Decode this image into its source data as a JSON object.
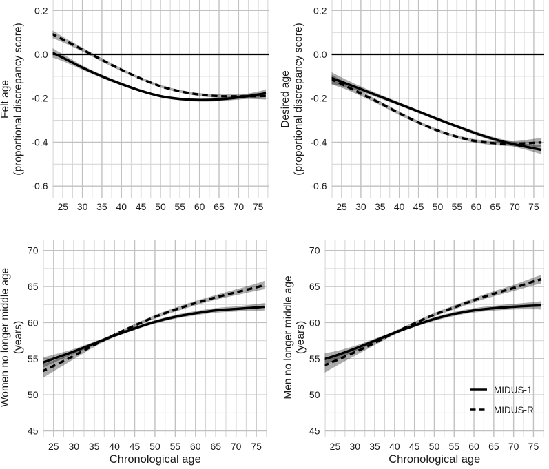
{
  "figure": {
    "description": "Four-panel line figure: subjective age discrepancy and end of middle age across chronological age, MIDUS-1 vs MIDUS-R",
    "xlabel": "Chronological age",
    "legend": {
      "position": "bottom-right-panel",
      "items": [
        {
          "label": "MIDUS-1",
          "style": "solid"
        },
        {
          "label": "MIDUS-R",
          "style": "dashed"
        }
      ]
    },
    "colors": {
      "background": "#ffffff",
      "line": "#000000",
      "ci_band": "rgba(0,0,0,0.32)",
      "grid_minor": "#d7d7d7",
      "grid_major": "#c1c1c1",
      "text": "#1a1a1a",
      "zero_line": "#000000"
    }
  },
  "chart_data": [
    {
      "type": "line",
      "panel": "top-left",
      "ylabel_lines": [
        "Felt age",
        "(proportional discrepancy score)"
      ],
      "xlabel": "",
      "xlim": [
        22.4,
        77.7
      ],
      "ylim": [
        -0.656,
        0.248
      ],
      "x_ticks": [
        25,
        30,
        35,
        40,
        45,
        50,
        55,
        60,
        65,
        70,
        75
      ],
      "x_tick_labels": [
        "25",
        "30",
        "35",
        "40",
        "45",
        "50",
        "55",
        "60",
        "65",
        "70",
        "75"
      ],
      "y_ticks": [
        0.2,
        0.0,
        -0.2,
        -0.4,
        -0.6
      ],
      "y_tick_labels": [
        "0.2",
        "0.0",
        "-0.2",
        "-0.4",
        "-0.6"
      ],
      "x_minor_step": 2.5,
      "x_major_step": 5,
      "y_minor_step": 0.1,
      "y_major_step": 0.2,
      "grid": true,
      "zero_line": true,
      "x": [
        22,
        25,
        30,
        35,
        40,
        45,
        50,
        55,
        60,
        65,
        70,
        75,
        77
      ],
      "series": [
        {
          "name": "MIDUS-1",
          "style": "solid",
          "values": [
            0.01,
            -0.015,
            -0.06,
            -0.1,
            -0.135,
            -0.166,
            -0.19,
            -0.203,
            -0.208,
            -0.205,
            -0.196,
            -0.183,
            -0.176
          ],
          "ci_half_width": [
            0.022,
            0.016,
            0.01,
            0.008,
            0.007,
            0.006,
            0.006,
            0.006,
            0.007,
            0.008,
            0.01,
            0.014,
            0.017
          ]
        },
        {
          "name": "MIDUS-R",
          "style": "dashed",
          "values": [
            0.095,
            0.068,
            0.022,
            -0.025,
            -0.07,
            -0.11,
            -0.145,
            -0.168,
            -0.183,
            -0.19,
            -0.191,
            -0.19,
            -0.189
          ],
          "ci_half_width": [
            0.018,
            0.013,
            0.009,
            0.008,
            0.007,
            0.006,
            0.006,
            0.006,
            0.007,
            0.008,
            0.01,
            0.014,
            0.017
          ]
        }
      ]
    },
    {
      "type": "line",
      "panel": "top-right",
      "ylabel_lines": [
        "Desired age",
        "(proportional discrepancy score)"
      ],
      "xlabel": "",
      "xlim": [
        22.4,
        77.7
      ],
      "ylim": [
        -0.656,
        0.248
      ],
      "x_ticks": [
        25,
        30,
        35,
        40,
        45,
        50,
        55,
        60,
        65,
        70,
        75
      ],
      "x_tick_labels": [
        "25",
        "30",
        "35",
        "40",
        "45",
        "50",
        "55",
        "60",
        "65",
        "70",
        "75"
      ],
      "y_ticks": [
        0.2,
        0.0,
        -0.2,
        -0.4,
        -0.6
      ],
      "y_tick_labels": [
        "0.2",
        "0.0",
        "-0.2",
        "-0.4",
        "-0.6"
      ],
      "x_minor_step": 2.5,
      "x_major_step": 5,
      "y_minor_step": 0.1,
      "y_major_step": 0.2,
      "grid": true,
      "zero_line": true,
      "x": [
        22,
        25,
        30,
        35,
        40,
        45,
        50,
        55,
        60,
        65,
        70,
        75,
        77
      ],
      "series": [
        {
          "name": "MIDUS-1",
          "style": "solid",
          "values": [
            -0.105,
            -0.125,
            -0.158,
            -0.192,
            -0.226,
            -0.26,
            -0.295,
            -0.328,
            -0.36,
            -0.388,
            -0.41,
            -0.428,
            -0.435
          ],
          "ci_half_width": [
            0.028,
            0.02,
            0.012,
            0.009,
            0.008,
            0.007,
            0.007,
            0.007,
            0.008,
            0.009,
            0.011,
            0.016,
            0.02
          ]
        },
        {
          "name": "MIDUS-R",
          "style": "dashed",
          "values": [
            -0.112,
            -0.135,
            -0.178,
            -0.222,
            -0.268,
            -0.31,
            -0.347,
            -0.375,
            -0.395,
            -0.405,
            -0.407,
            -0.403,
            -0.401
          ],
          "ci_half_width": [
            0.024,
            0.017,
            0.011,
            0.009,
            0.008,
            0.007,
            0.007,
            0.007,
            0.008,
            0.009,
            0.012,
            0.018,
            0.022
          ]
        }
      ]
    },
    {
      "type": "line",
      "panel": "bottom-left",
      "ylabel_lines": [
        "Women no longer middle age",
        "(years)"
      ],
      "xlabel": "Chronological age",
      "xlim": [
        22.4,
        77.7
      ],
      "ylim": [
        44.1,
        71.5
      ],
      "x_ticks": [
        25,
        30,
        35,
        40,
        45,
        50,
        55,
        60,
        65,
        70,
        75
      ],
      "x_tick_labels": [
        "25",
        "30",
        "35",
        "40",
        "45",
        "50",
        "55",
        "60",
        "65",
        "70",
        "75"
      ],
      "y_ticks": [
        70,
        65,
        60,
        55,
        50,
        45
      ],
      "y_tick_labels": [
        "70",
        "65",
        "60",
        "55",
        "50",
        "45"
      ],
      "x_minor_step": 2.5,
      "x_major_step": 5,
      "y_minor_step": 2.5,
      "y_major_step": 5,
      "grid": true,
      "zero_line": false,
      "x": [
        22,
        25,
        30,
        35,
        40,
        45,
        50,
        55,
        60,
        65,
        70,
        75,
        77
      ],
      "series": [
        {
          "name": "MIDUS-1",
          "style": "solid",
          "values": [
            54.4,
            55.0,
            56.0,
            57.1,
            58.2,
            59.2,
            60.1,
            60.8,
            61.3,
            61.7,
            61.9,
            62.1,
            62.2
          ],
          "ci_half_width": [
            0.75,
            0.55,
            0.35,
            0.25,
            0.22,
            0.22,
            0.24,
            0.26,
            0.29,
            0.32,
            0.36,
            0.45,
            0.52
          ]
        },
        {
          "name": "MIDUS-R",
          "style": "dashed",
          "values": [
            53.2,
            54.0,
            55.4,
            56.9,
            58.3,
            59.6,
            60.8,
            61.8,
            62.7,
            63.5,
            64.2,
            64.9,
            65.2
          ],
          "ci_half_width": [
            1.0,
            0.75,
            0.45,
            0.28,
            0.22,
            0.22,
            0.25,
            0.28,
            0.3,
            0.33,
            0.4,
            0.5,
            0.58
          ]
        }
      ]
    },
    {
      "type": "line",
      "panel": "bottom-right",
      "ylabel_lines": [
        "Men no longer middle age",
        "(years)"
      ],
      "xlabel": "Chronological age",
      "xlim": [
        22.4,
        77.7
      ],
      "ylim": [
        44.1,
        71.5
      ],
      "x_ticks": [
        25,
        30,
        35,
        40,
        45,
        50,
        55,
        60,
        65,
        70,
        75
      ],
      "x_tick_labels": [
        "25",
        "30",
        "35",
        "40",
        "45",
        "50",
        "55",
        "60",
        "65",
        "70",
        "75"
      ],
      "y_ticks": [
        70,
        65,
        60,
        55,
        50,
        45
      ],
      "y_tick_labels": [
        "70",
        "65",
        "60",
        "55",
        "50",
        "45"
      ],
      "x_minor_step": 2.5,
      "x_major_step": 5,
      "y_minor_step": 2.5,
      "y_major_step": 5,
      "grid": true,
      "zero_line": false,
      "x": [
        22,
        25,
        30,
        35,
        40,
        45,
        50,
        55,
        60,
        65,
        70,
        75,
        77
      ],
      "series": [
        {
          "name": "MIDUS-1",
          "style": "solid",
          "values": [
            54.9,
            55.4,
            56.4,
            57.5,
            58.6,
            59.6,
            60.5,
            61.2,
            61.7,
            62.0,
            62.2,
            62.35,
            62.4
          ],
          "ci_half_width": [
            0.85,
            0.62,
            0.38,
            0.27,
            0.22,
            0.22,
            0.25,
            0.28,
            0.3,
            0.33,
            0.38,
            0.5,
            0.58
          ]
        },
        {
          "name": "MIDUS-R",
          "style": "dashed",
          "values": [
            54.0,
            54.7,
            55.9,
            57.2,
            58.6,
            59.9,
            61.1,
            62.1,
            63.1,
            64.0,
            64.8,
            65.7,
            66.0
          ],
          "ci_half_width": [
            1.05,
            0.8,
            0.5,
            0.32,
            0.24,
            0.22,
            0.25,
            0.28,
            0.3,
            0.35,
            0.42,
            0.54,
            0.62
          ]
        }
      ]
    }
  ]
}
